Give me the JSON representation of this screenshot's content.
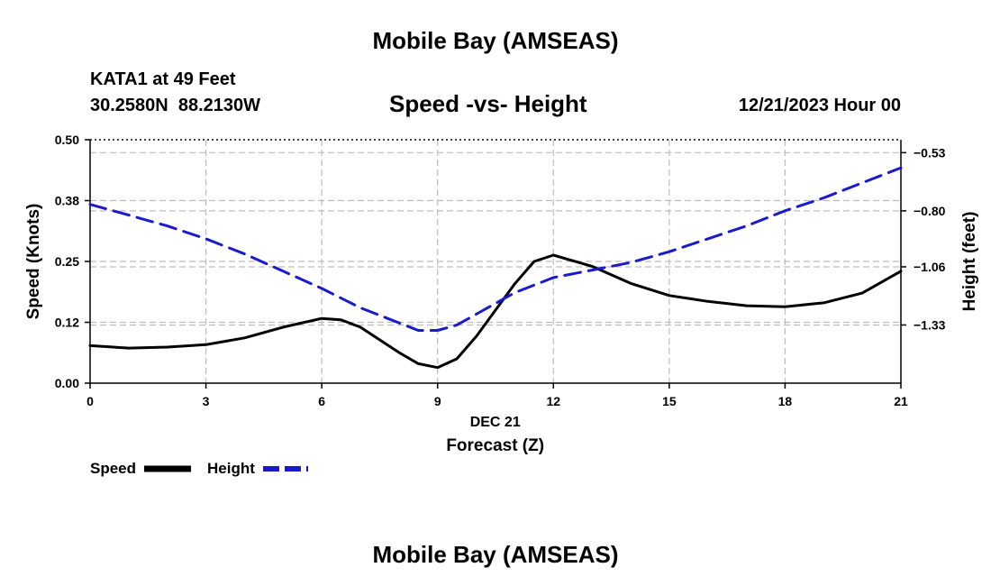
{
  "page": {
    "top_title": "Mobile Bay (AMSEAS)",
    "bottom_title": "Mobile Bay (AMSEAS)",
    "station_line": "KATA1 at 49 Feet",
    "coords_line": "30.2580N  88.2130W",
    "date_line": "12/21/2023 Hour 00"
  },
  "chart_data": {
    "type": "line",
    "title": "Speed -vs- Height",
    "xlabel": "Forecast (Z)",
    "xlabel_date": "DEC 21",
    "ylabel": "Speed (Knots)",
    "y2label": "Height (feet)",
    "xlim": [
      0,
      21
    ],
    "ylim": [
      0,
      0.5
    ],
    "y2lim": [
      -1.6,
      -0.47
    ],
    "x_ticks": [
      0,
      3,
      6,
      9,
      12,
      15,
      18,
      21
    ],
    "x_tick_labels": [
      "0",
      "3",
      "6",
      "9",
      "12",
      "15",
      "18",
      "21"
    ],
    "y_ticks": [
      0,
      0.125,
      0.25,
      0.375,
      0.5
    ],
    "y_tick_labels": [
      "0.00",
      "0.12",
      "0.25",
      "0.38",
      "0.50"
    ],
    "y2_ticks": [
      -1.33,
      -1.06,
      -0.8,
      -0.53
    ],
    "y2_tick_labels": [
      "−1.33",
      "−1.06",
      "−0.80",
      "−0.53"
    ],
    "grid": true,
    "legend": [
      {
        "name": "Speed",
        "color": "#000000",
        "dash": "solid"
      },
      {
        "name": "Height",
        "color": "#1a1acc",
        "dash": "dashed"
      }
    ],
    "series": [
      {
        "name": "Speed",
        "axis": "left",
        "color": "#000000",
        "x": [
          0,
          1,
          2,
          3,
          4,
          5,
          6,
          6.5,
          7,
          8,
          8.5,
          9,
          9.5,
          10,
          11,
          11.5,
          12,
          13,
          14,
          15,
          16,
          17,
          18,
          19,
          20,
          21
        ],
        "values": [
          0.077,
          0.072,
          0.074,
          0.079,
          0.093,
          0.115,
          0.133,
          0.13,
          0.115,
          0.063,
          0.04,
          0.032,
          0.05,
          0.096,
          0.204,
          0.25,
          0.263,
          0.24,
          0.205,
          0.18,
          0.168,
          0.159,
          0.157,
          0.165,
          0.185,
          0.23
        ]
      },
      {
        "name": "Height",
        "axis": "right",
        "color": "#1a1acc",
        "x": [
          0,
          1,
          2,
          3,
          4,
          5,
          6,
          7,
          8,
          8.5,
          9,
          9.5,
          10,
          11,
          12,
          13,
          14,
          15,
          16,
          17,
          18,
          19,
          20,
          21
        ],
        "values": [
          -0.77,
          -0.82,
          -0.87,
          -0.93,
          -1.0,
          -1.08,
          -1.16,
          -1.25,
          -1.32,
          -1.355,
          -1.355,
          -1.33,
          -1.28,
          -1.18,
          -1.11,
          -1.075,
          -1.04,
          -0.99,
          -0.93,
          -0.87,
          -0.8,
          -0.74,
          -0.67,
          -0.6
        ]
      }
    ]
  }
}
